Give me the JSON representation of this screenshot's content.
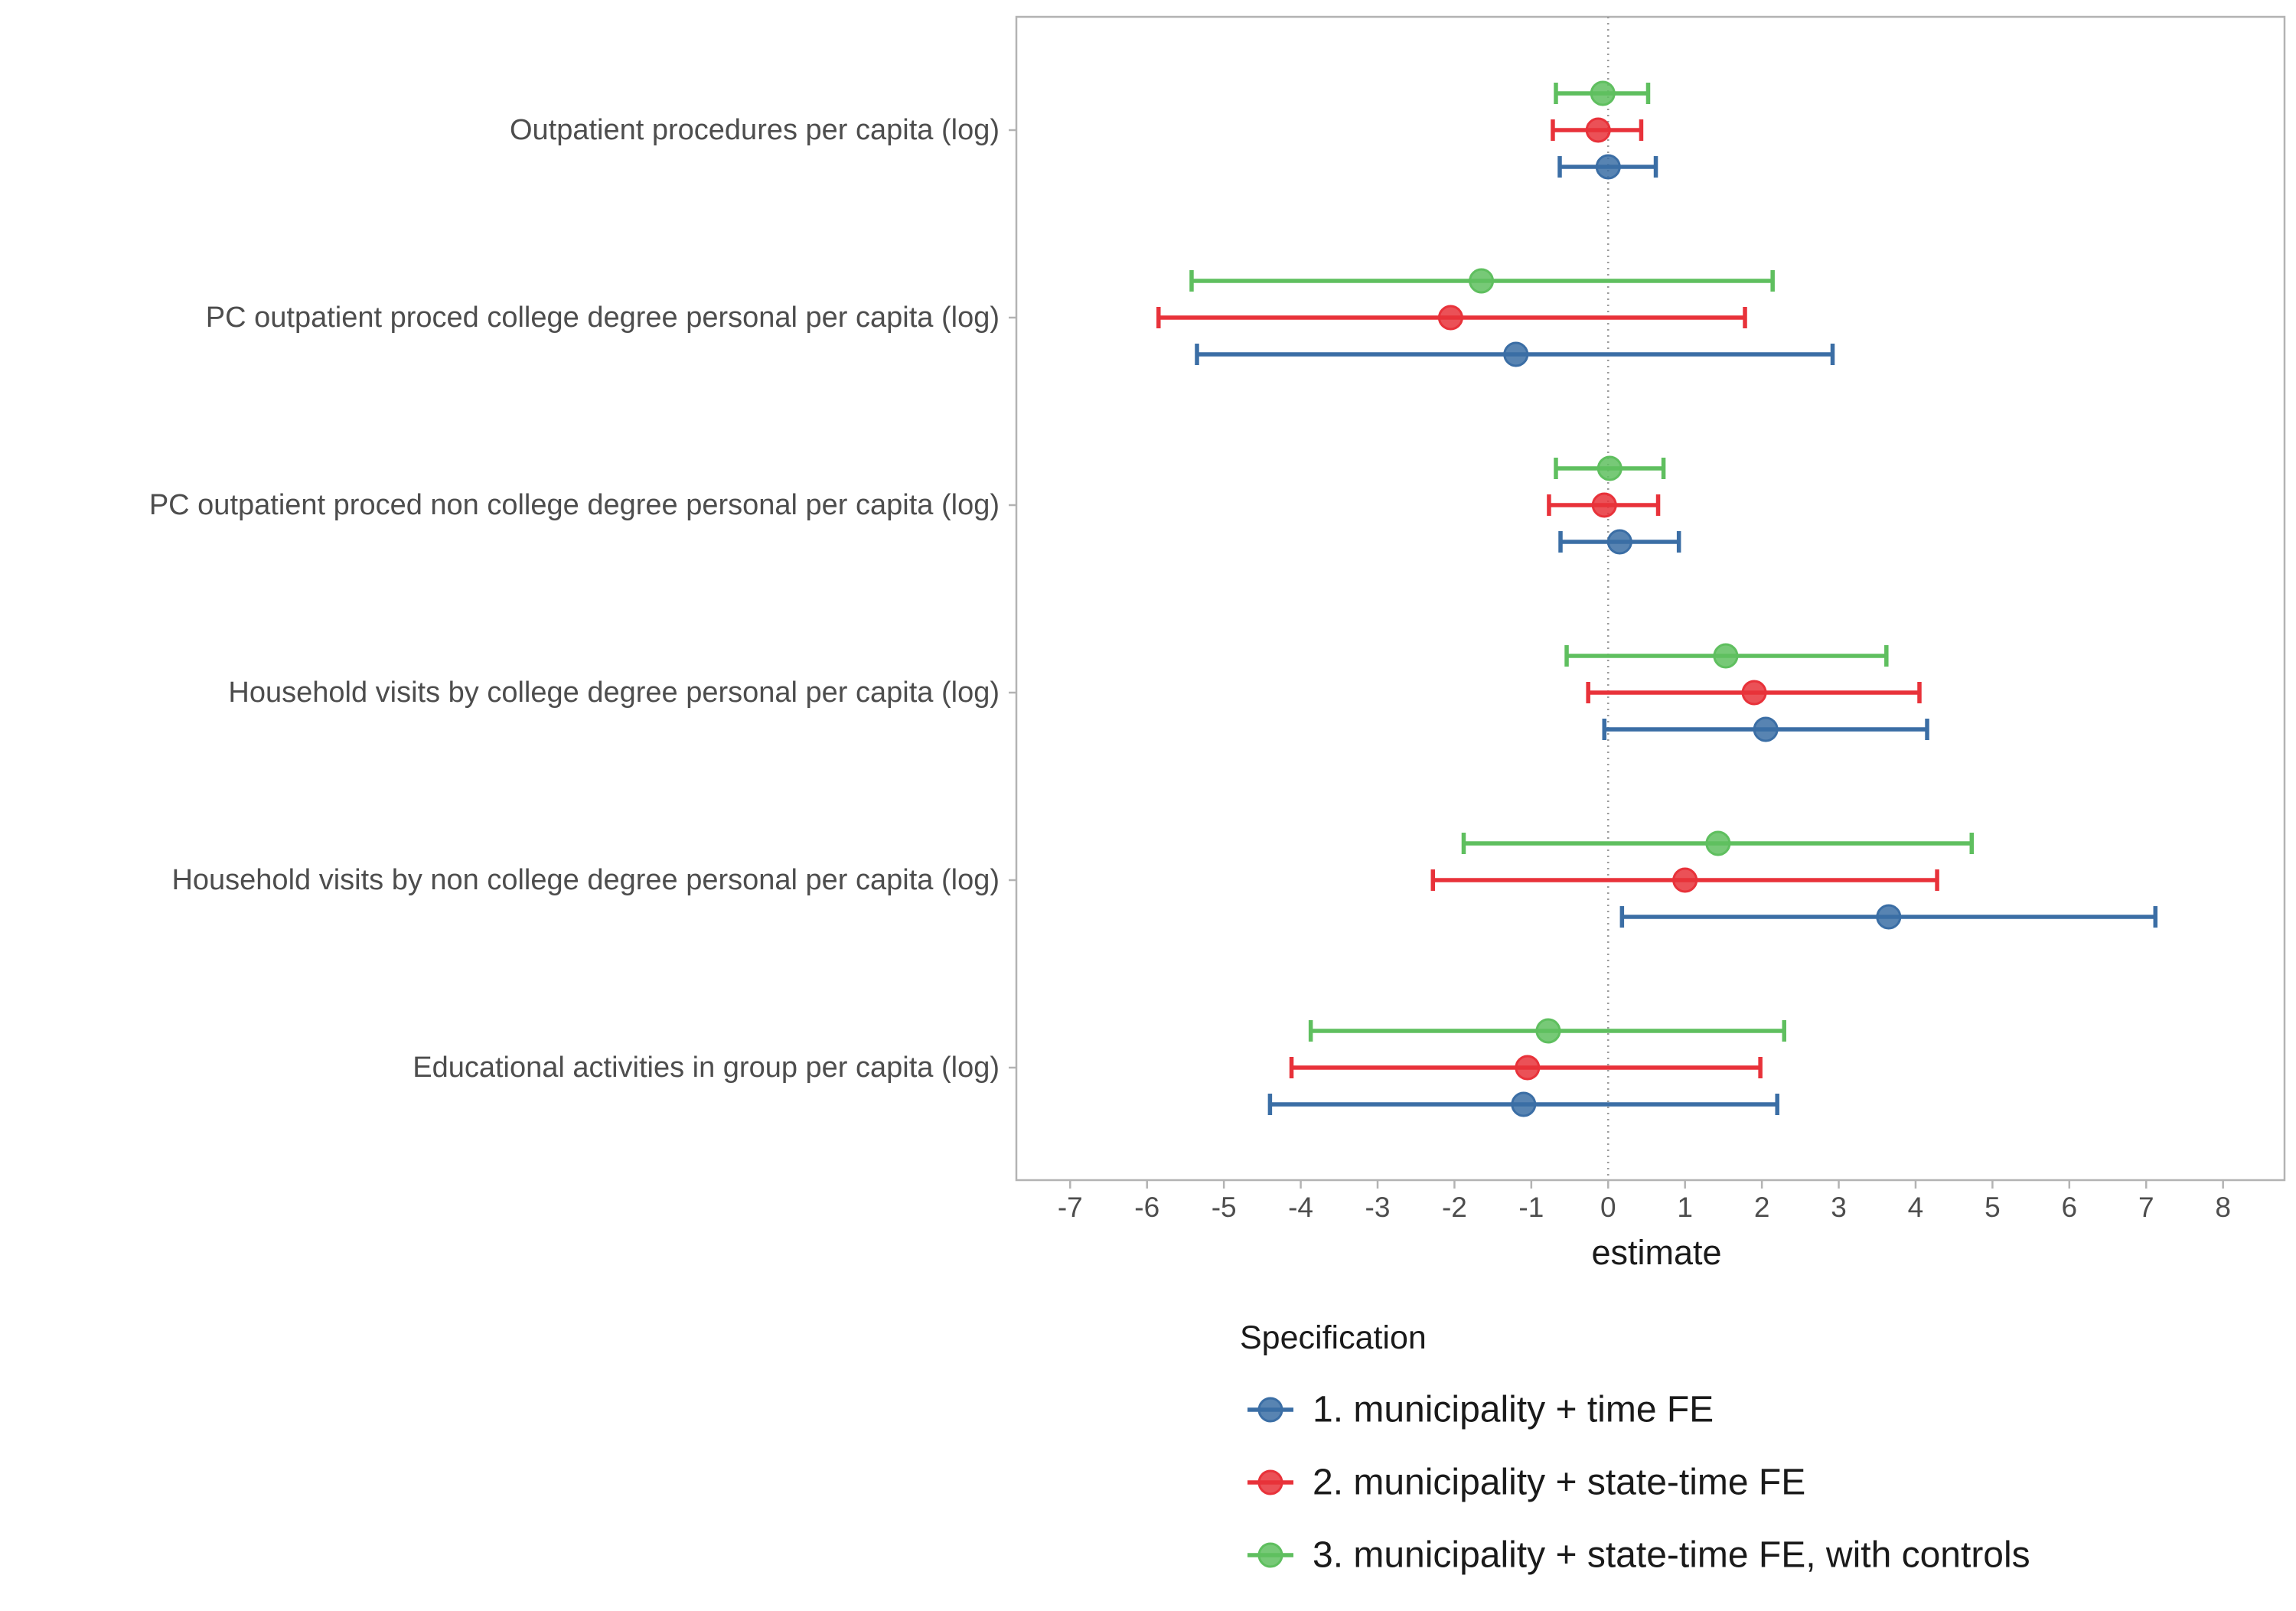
{
  "chart_data": {
    "type": "scatter",
    "subtype": "coefficient-plot-with-error-bars",
    "orientation": "horizontal",
    "xlabel": "estimate",
    "xlim": [
      -7.7,
      8.8
    ],
    "xticks": [
      -7,
      -6,
      -5,
      -4,
      -3,
      -2,
      -1,
      0,
      1,
      2,
      3,
      4,
      5,
      6,
      7,
      8
    ],
    "xtick_labels": [
      "-7",
      "-6",
      "-5",
      "-4",
      "-3",
      "-2",
      "-1",
      "0",
      "1",
      "2",
      "3",
      "4",
      "5",
      "6",
      "7",
      "8"
    ],
    "reference_line": 0,
    "grid": false,
    "legend_title": "Specification",
    "legend_position": "bottom",
    "categories": [
      "Outpatient procedures per capita (log)",
      "PC outpatient proced college degree personal per capita (log)",
      "PC outpatient proced non college degree personal per capita (log)",
      "Household visits by college degree personal per capita (log)",
      "Household visits by non college degree personal per capita (log)",
      "Educational activities in group per capita (log)"
    ],
    "series": [
      {
        "name": "1. municipality + time FE",
        "color": "#3b6ea5",
        "estimates": [
          0.0,
          -1.2,
          0.15,
          2.05,
          3.65,
          -1.1
        ],
        "ci_low": [
          -0.63,
          -5.35,
          -0.62,
          -0.05,
          0.18,
          -4.4
        ],
        "ci_high": [
          0.62,
          2.92,
          0.92,
          4.15,
          7.12,
          2.2
        ]
      },
      {
        "name": "2. municipality + state-time FE",
        "color": "#e8323a",
        "estimates": [
          -0.13,
          -2.05,
          -0.05,
          1.9,
          1.0,
          -1.05
        ],
        "ci_low": [
          -0.72,
          -5.85,
          -0.77,
          -0.26,
          -2.28,
          -4.12
        ],
        "ci_high": [
          0.43,
          1.78,
          0.65,
          4.05,
          4.28,
          1.98
        ]
      },
      {
        "name": "3. municipality + state-time FE, with controls",
        "color": "#5fbf5f",
        "estimates": [
          -0.07,
          -1.65,
          0.02,
          1.53,
          1.43,
          -0.78
        ],
        "ci_low": [
          -0.68,
          -5.42,
          -0.68,
          -0.54,
          -1.88,
          -3.87
        ],
        "ci_high": [
          0.52,
          2.14,
          0.72,
          3.62,
          4.73,
          2.29
        ]
      }
    ]
  }
}
